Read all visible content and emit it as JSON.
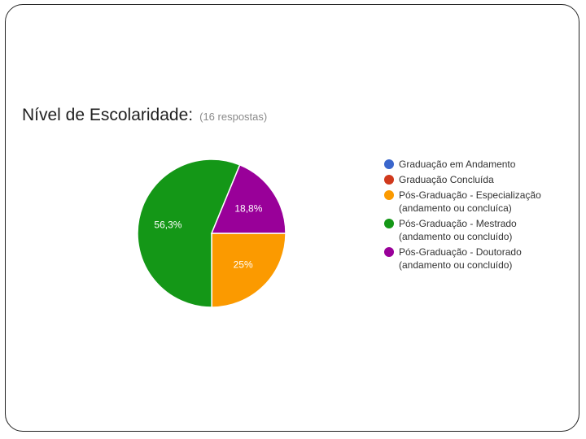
{
  "chart_data": {
    "type": "pie",
    "title": "Nível de Escolaridade:",
    "subtitle": "(16 respostas)",
    "series": [
      {
        "name": "Graduação em Andamento",
        "value": 0,
        "color": "#3a66cc"
      },
      {
        "name": "Graduação Concluída",
        "value": 0,
        "color": "#d0391c"
      },
      {
        "name": "Pós-Graduação - Especialização\n(andamento ou concluíca)",
        "value": 25,
        "label": "25%",
        "color": "#fb9a00"
      },
      {
        "name": "Pós-Graduação - Mestrado\n(andamento ou concluído)",
        "value": 56.3,
        "label": "56,3%",
        "color": "#149717"
      },
      {
        "name": "Pós-Graduação - Doutorado\n(andamento ou concluído)",
        "value": 18.8,
        "label": "18,8%",
        "color": "#990099"
      }
    ],
    "legend_position": "right"
  }
}
